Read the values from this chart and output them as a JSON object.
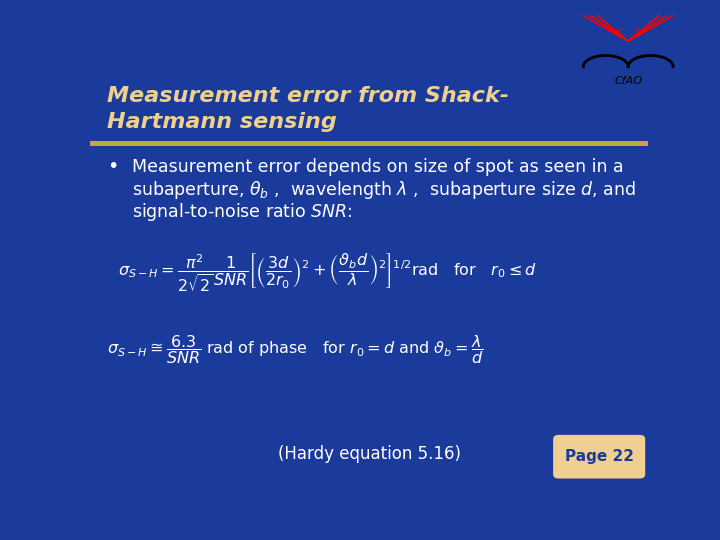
{
  "bg_color": "#1a3a9c",
  "title_text_line1": "Measurement error from Shack-",
  "title_text_line2": "Hartmann sensing",
  "title_color": "#f0d090",
  "separator_color": "#c8a830",
  "bullet_text_line1": "Measurement error depends on size of spot as seen in a",
  "bullet_text_line2": "subaperture, $\\theta_b$ ,  wavelength $\\lambda$ ,  subaperture size $d$, and",
  "bullet_text_line3": "signal-to-noise ratio $\\mathit{SNR}$:",
  "bullet_color": "#ffffff",
  "eq1": "$\\sigma_{S-H} = \\dfrac{\\pi^2}{2\\sqrt{2}} \\dfrac{1}{SNR} \\left[ \\left(\\dfrac{3d}{2r_0}\\right)^{2} + \\left(\\dfrac{\\vartheta_b d}{\\lambda}\\right)^{2} \\right]^{1/2} \\mathrm{rad} \\quad \\mathrm{for} \\quad r_0 \\leq d$",
  "eq2": "$\\sigma_{S-H} \\cong \\dfrac{6.3}{SNR} \\; \\mathrm{rad\\ of\\ phase} \\quad \\mathrm{for}\\ r_0 = d\\ \\mathrm{and}\\ \\vartheta_b = \\dfrac{\\lambda}{d}$",
  "footer_text": "(Hardy equation 5.16)",
  "page_text": "Page 22",
  "page_color": "#f0d090",
  "footer_color": "#ffffff",
  "eq_color": "#ffffff"
}
